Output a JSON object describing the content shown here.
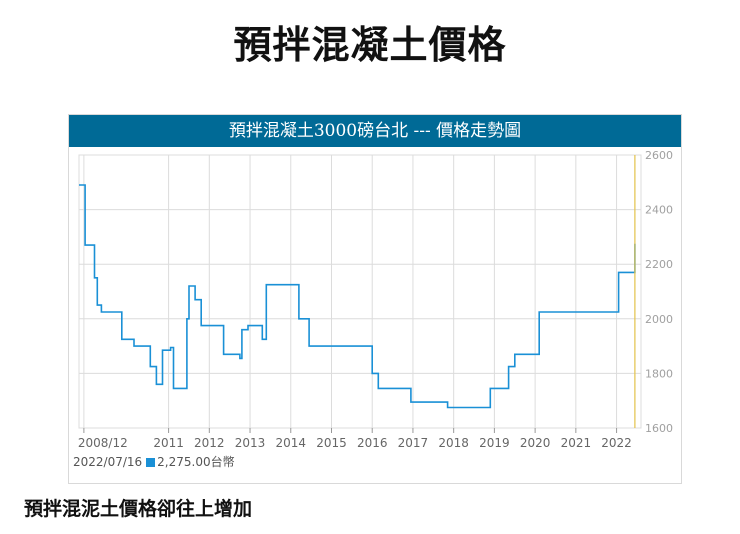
{
  "page": {
    "title": "預拌混凝土價格",
    "footer_note": "預拌混泥土價格卻往上增加"
  },
  "chart_data": {
    "type": "line",
    "title": "預拌混凝土3000磅台北 --- 價格走勢圖",
    "x_tick_labels": [
      "2008/12",
      "2011",
      "2012",
      "2013",
      "2014",
      "2015",
      "2016",
      "2017",
      "2018",
      "2019",
      "2020",
      "2021",
      "2022"
    ],
    "x_ticks": [
      2008.92,
      2011,
      2012,
      2013,
      2014,
      2015,
      2016,
      2017,
      2018,
      2019,
      2020,
      2021,
      2022
    ],
    "y_ticks": [
      1600,
      1800,
      2000,
      2200,
      2400,
      2600
    ],
    "xlim": [
      2008.8,
      2022.6
    ],
    "ylim": [
      1600,
      2600
    ],
    "grid": true,
    "y_axis_side": "right",
    "legend": {
      "date": "2022/07/16",
      "value": "2,275.00台幣"
    },
    "colors": {
      "header": "#006a96",
      "line": "#1a90d6",
      "cursor": "#e3c24a",
      "grid": "#dcdcdc",
      "tick_text": "#666666"
    },
    "series": [
      {
        "values": [
          [
            2008.8,
            2490
          ],
          [
            2008.95,
            2490
          ],
          [
            2008.95,
            2270
          ],
          [
            2009.18,
            2270
          ],
          [
            2009.18,
            2150
          ],
          [
            2009.25,
            2150
          ],
          [
            2009.25,
            2050
          ],
          [
            2009.35,
            2050
          ],
          [
            2009.35,
            2025
          ],
          [
            2009.85,
            2025
          ],
          [
            2009.85,
            1925
          ],
          [
            2010.15,
            1925
          ],
          [
            2010.15,
            1900
          ],
          [
            2010.55,
            1900
          ],
          [
            2010.55,
            1825
          ],
          [
            2010.7,
            1825
          ],
          [
            2010.7,
            1760
          ],
          [
            2010.85,
            1760
          ],
          [
            2010.85,
            1885
          ],
          [
            2011.05,
            1885
          ],
          [
            2011.05,
            1895
          ],
          [
            2011.12,
            1895
          ],
          [
            2011.12,
            1745
          ],
          [
            2011.45,
            1745
          ],
          [
            2011.45,
            2000
          ],
          [
            2011.5,
            2000
          ],
          [
            2011.5,
            2120
          ],
          [
            2011.65,
            2120
          ],
          [
            2011.65,
            2070
          ],
          [
            2011.8,
            2070
          ],
          [
            2011.8,
            1975
          ],
          [
            2012.35,
            1975
          ],
          [
            2012.35,
            1870
          ],
          [
            2012.75,
            1870
          ],
          [
            2012.75,
            1855
          ],
          [
            2012.8,
            1855
          ],
          [
            2012.8,
            1960
          ],
          [
            2012.95,
            1960
          ],
          [
            2012.95,
            1975
          ],
          [
            2013.3,
            1975
          ],
          [
            2013.3,
            1925
          ],
          [
            2013.4,
            1925
          ],
          [
            2013.4,
            2125
          ],
          [
            2014.2,
            2125
          ],
          [
            2014.2,
            2000
          ],
          [
            2014.45,
            2000
          ],
          [
            2014.45,
            1900
          ],
          [
            2016.0,
            1900
          ],
          [
            2016.0,
            1800
          ],
          [
            2016.15,
            1800
          ],
          [
            2016.15,
            1745
          ],
          [
            2016.95,
            1745
          ],
          [
            2016.95,
            1695
          ],
          [
            2017.85,
            1695
          ],
          [
            2017.85,
            1675
          ],
          [
            2018.9,
            1675
          ],
          [
            2018.9,
            1745
          ],
          [
            2019.35,
            1745
          ],
          [
            2019.35,
            1825
          ],
          [
            2019.5,
            1825
          ],
          [
            2019.5,
            1870
          ],
          [
            2020.1,
            1870
          ],
          [
            2020.1,
            2025
          ],
          [
            2022.05,
            2025
          ],
          [
            2022.05,
            2170
          ],
          [
            2022.45,
            2170
          ],
          [
            2022.45,
            2275
          ]
        ]
      }
    ]
  }
}
